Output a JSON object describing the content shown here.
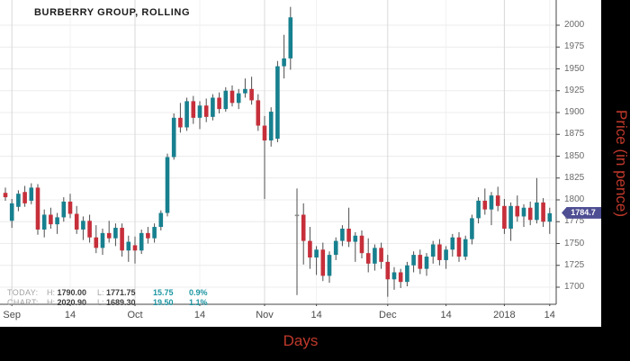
{
  "title": "BURBERRY GROUP, ROLLING",
  "last_price_label": "1784.7",
  "colors": {
    "up_candle": "#17808f",
    "down_candle": "#c62f3a",
    "doji_candle": "#8a8a8a",
    "wick": "#4d4d4d",
    "grid": "#ececec",
    "grid_month": "#d8d8d8",
    "axis_line": "#444444",
    "tick_label": "#4a4a4a",
    "price_tag_bg": "#4e4e93",
    "axis_title_red": "#c0392b",
    "stat_teal": "#1d96a3",
    "frame_black": "#000000",
    "panel_white": "#ffffff"
  },
  "stats": {
    "today": {
      "label": "TODAY:",
      "h_label": "H:",
      "high": "1790.00",
      "l_label": "L:",
      "low": "1771.75",
      "change": "15.75",
      "pct": "0.9%"
    },
    "chart": {
      "label": "CHART:",
      "h_label": "H:",
      "high": "2020.90",
      "l_label": "L:",
      "low": "1689.30",
      "change": "19.50",
      "pct": "1.1%"
    }
  },
  "axes": {
    "x_title": "Days",
    "y_title": "Price (in pence)",
    "y_ticks": [
      2000,
      1975,
      1950,
      1925,
      1900,
      1875,
      1850,
      1825,
      1800,
      1775,
      1750,
      1725,
      1700
    ],
    "y_range": [
      1700,
      2000
    ],
    "x_ticks": [
      {
        "label": "Sep",
        "index": 1,
        "major": true
      },
      {
        "label": "14",
        "index": 10,
        "major": false
      },
      {
        "label": "Oct",
        "index": 20,
        "major": true
      },
      {
        "label": "14",
        "index": 30,
        "major": false
      },
      {
        "label": "Nov",
        "index": 40,
        "major": true
      },
      {
        "label": "14",
        "index": 48,
        "major": false
      },
      {
        "label": "Dec",
        "index": 59,
        "major": true
      },
      {
        "label": "14",
        "index": 68,
        "major": false
      },
      {
        "label": "2018",
        "index": 77,
        "major": true
      },
      {
        "label": "14",
        "index": 84,
        "major": false
      }
    ]
  },
  "chart_data": {
    "type": "candlestick",
    "title": "BURBERRY GROUP, ROLLING",
    "x_unit": "trading days (Sep 2017 - mid Jan 2018)",
    "y_unit": "pence",
    "ylim": [
      1689.3,
      2020.9
    ],
    "grid": true,
    "last_close": 1784.7,
    "candles_format": [
      "open",
      "high",
      "low",
      "close"
    ],
    "candles": [
      [
        1808,
        1814,
        1799,
        1803
      ],
      [
        1776,
        1801,
        1768,
        1796
      ],
      [
        1792,
        1811,
        1787,
        1807
      ],
      [
        1809,
        1816,
        1792,
        1796
      ],
      [
        1799,
        1819,
        1795,
        1814
      ],
      [
        1814,
        1818,
        1760,
        1766
      ],
      [
        1766,
        1789,
        1757,
        1783
      ],
      [
        1783,
        1791,
        1767,
        1772
      ],
      [
        1772,
        1785,
        1761,
        1780
      ],
      [
        1780,
        1803,
        1775,
        1798
      ],
      [
        1798,
        1807,
        1779,
        1784
      ],
      [
        1784,
        1793,
        1761,
        1766
      ],
      [
        1766,
        1781,
        1754,
        1776
      ],
      [
        1776,
        1783,
        1751,
        1757
      ],
      [
        1757,
        1771,
        1739,
        1745
      ],
      [
        1745,
        1767,
        1737,
        1762
      ],
      [
        1762,
        1776,
        1751,
        1756
      ],
      [
        1756,
        1773,
        1747,
        1768
      ],
      [
        1768,
        1773,
        1735,
        1742
      ],
      [
        1742,
        1759,
        1729,
        1752
      ],
      [
        1748,
        1758,
        1727,
        1742
      ],
      [
        1742,
        1766,
        1738,
        1762
      ],
      [
        1762,
        1769,
        1750,
        1756
      ],
      [
        1756,
        1773,
        1751,
        1769
      ],
      [
        1769,
        1788,
        1765,
        1785
      ],
      [
        1785,
        1853,
        1781,
        1849
      ],
      [
        1849,
        1899,
        1846,
        1894
      ],
      [
        1894,
        1911,
        1877,
        1883
      ],
      [
        1883,
        1917,
        1879,
        1913
      ],
      [
        1913,
        1919,
        1887,
        1894
      ],
      [
        1894,
        1913,
        1881,
        1908
      ],
      [
        1908,
        1916,
        1889,
        1895
      ],
      [
        1895,
        1921,
        1891,
        1917
      ],
      [
        1917,
        1923,
        1899,
        1904
      ],
      [
        1904,
        1929,
        1901,
        1925
      ],
      [
        1925,
        1931,
        1907,
        1911
      ],
      [
        1911,
        1927,
        1904,
        1922
      ],
      [
        1922,
        1939,
        1917,
        1927
      ],
      [
        1927,
        1941,
        1909,
        1914
      ],
      [
        1914,
        1921,
        1879,
        1885
      ],
      [
        1885,
        1896,
        1801,
        1868
      ],
      [
        1868,
        1906,
        1861,
        1901
      ],
      [
        1870,
        1959,
        1866,
        1953
      ],
      [
        1953,
        1989,
        1939,
        1962
      ],
      [
        1962,
        2021,
        1949,
        2009
      ],
      [
        1783,
        1813,
        1691,
        1783
      ],
      [
        1783,
        1796,
        1726,
        1753
      ],
      [
        1753,
        1769,
        1721,
        1734
      ],
      [
        1734,
        1747,
        1714,
        1743
      ],
      [
        1743,
        1751,
        1707,
        1713
      ],
      [
        1713,
        1741,
        1705,
        1737
      ],
      [
        1737,
        1757,
        1731,
        1753
      ],
      [
        1753,
        1771,
        1747,
        1767
      ],
      [
        1767,
        1791,
        1746,
        1752
      ],
      [
        1752,
        1763,
        1729,
        1759
      ],
      [
        1759,
        1765,
        1733,
        1739
      ],
      [
        1739,
        1756,
        1717,
        1727
      ],
      [
        1727,
        1749,
        1719,
        1745
      ],
      [
        1745,
        1751,
        1721,
        1729
      ],
      [
        1729,
        1737,
        1689,
        1709
      ],
      [
        1709,
        1723,
        1697,
        1717
      ],
      [
        1717,
        1721,
        1699,
        1706
      ],
      [
        1706,
        1729,
        1701,
        1725
      ],
      [
        1725,
        1741,
        1717,
        1737
      ],
      [
        1737,
        1743,
        1715,
        1721
      ],
      [
        1721,
        1739,
        1713,
        1735
      ],
      [
        1735,
        1753,
        1727,
        1749
      ],
      [
        1749,
        1755,
        1725,
        1731
      ],
      [
        1731,
        1747,
        1721,
        1743
      ],
      [
        1743,
        1761,
        1735,
        1757
      ],
      [
        1757,
        1763,
        1729,
        1735
      ],
      [
        1735,
        1759,
        1731,
        1755
      ],
      [
        1755,
        1783,
        1749,
        1779
      ],
      [
        1779,
        1803,
        1773,
        1799
      ],
      [
        1799,
        1813,
        1783,
        1789
      ],
      [
        1789,
        1809,
        1771,
        1805
      ],
      [
        1805,
        1815,
        1787,
        1793
      ],
      [
        1793,
        1801,
        1761,
        1767
      ],
      [
        1767,
        1797,
        1753,
        1793
      ],
      [
        1793,
        1805,
        1775,
        1781
      ],
      [
        1781,
        1795,
        1769,
        1791
      ],
      [
        1791,
        1798,
        1771,
        1777
      ],
      [
        1777,
        1825,
        1773,
        1797
      ],
      [
        1797,
        1802,
        1769,
        1775
      ],
      [
        1775,
        1791,
        1761,
        1784.7
      ]
    ]
  }
}
